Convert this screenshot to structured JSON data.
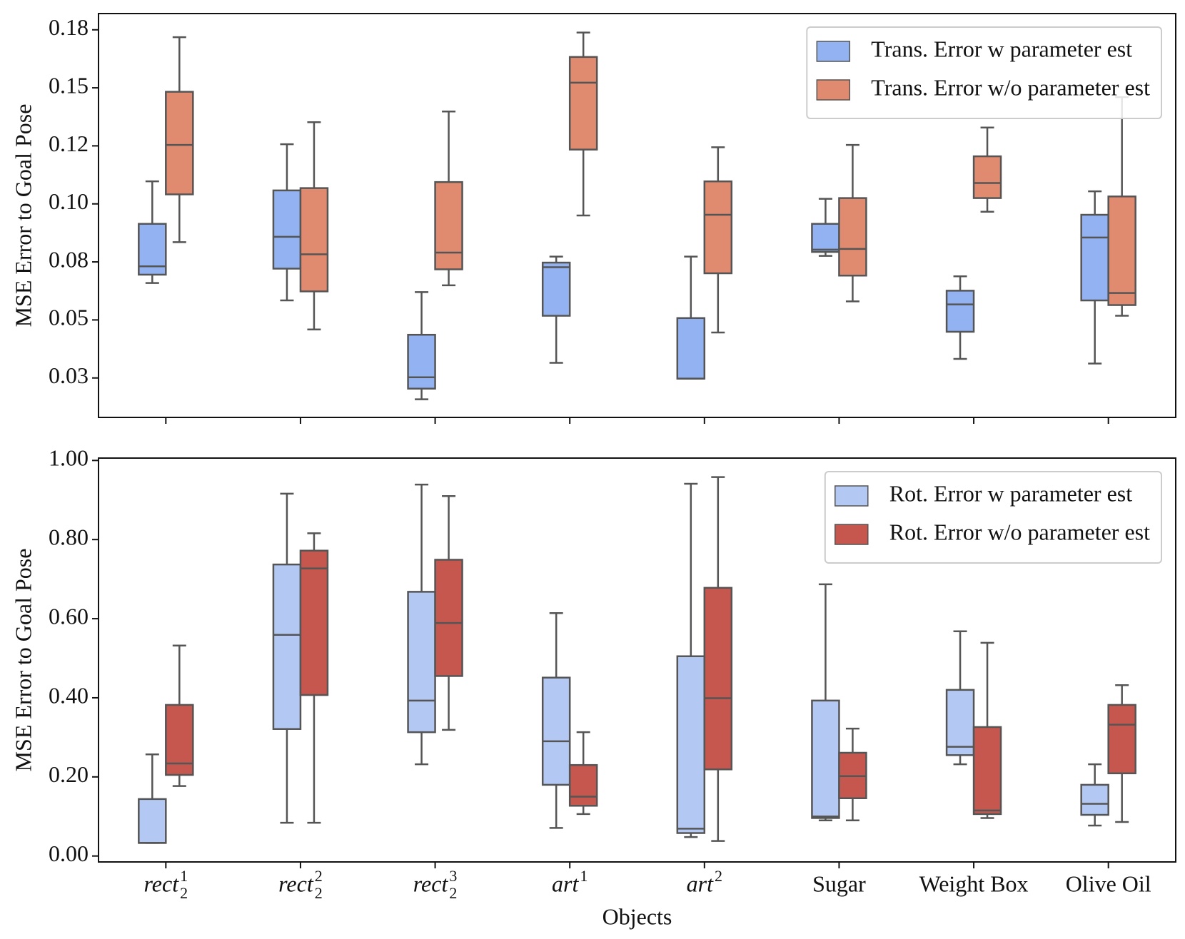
{
  "chart_data": [
    {
      "type": "box",
      "ylabel": "MSE Error to Goal Pose",
      "ylim": [
        0.008,
        0.182
      ],
      "yticks": [
        {
          "value": 0.025,
          "label": "0.03"
        },
        0.05,
        {
          "value": 0.075,
          "label": "0.08"
        },
        {
          "value": 0.1,
          "label": "0.10"
        },
        {
          "value": 0.125,
          "label": "0.12"
        },
        0.15,
        {
          "value": 0.175,
          "label": "0.18"
        }
      ],
      "legend": "upper right",
      "series": [
        {
          "name": "Trans. Error w parameter est",
          "color": "#92b2f1",
          "values": [
            [
              0.0659,
              0.0695,
              0.0731,
              0.0914,
              0.1097
            ],
            [
              0.0584,
              0.0721,
              0.0858,
              0.1058,
              0.1257
            ],
            [
              0.0158,
              0.0204,
              0.0253,
              0.0436,
              0.062
            ],
            [
              0.0315,
              0.0518,
              0.0727,
              0.0747,
              0.0773
            ],
            [
              0.0247,
              0.0247,
              0.0247,
              0.0508,
              0.0773
            ],
            [
              0.0776,
              0.0793,
              0.0803,
              0.0914,
              0.1022
            ],
            [
              0.0332,
              0.0449,
              0.0567,
              0.0626,
              0.0688
            ],
            [
              0.0312,
              0.0584,
              0.0855,
              0.0953,
              0.1054
            ]
          ]
        },
        {
          "name": "Trans. Error w/o parameter est",
          "color": "#e08a70",
          "values": [
            [
              0.0835,
              0.1041,
              0.1254,
              0.1483,
              0.1718
            ],
            [
              0.0459,
              0.0623,
              0.0783,
              0.1068,
              0.1352
            ],
            [
              0.0649,
              0.0718,
              0.079,
              0.1094,
              0.1398
            ],
            [
              0.095,
              0.1234,
              0.1522,
              0.1633,
              0.1738
            ],
            [
              0.0446,
              0.0701,
              0.0953,
              0.1097,
              0.1244
            ],
            [
              0.058,
              0.0691,
              0.0806,
              0.1025,
              0.1254
            ],
            [
              0.0966,
              0.1025,
              0.109,
              0.1205,
              0.1329
            ],
            [
              0.0518,
              0.0564,
              0.0616,
              0.1032,
              0.146
            ]
          ]
        }
      ]
    },
    {
      "type": "box",
      "xlabel": "Objects",
      "ylabel": "MSE Error to Goal Pose",
      "categories": [
        "rect",
        "rect",
        "rect",
        "art",
        "art",
        "Sugar",
        "Weight Box",
        "Olive Oil"
      ],
      "category_sub": [
        "2",
        "2",
        "2",
        null,
        null,
        null,
        null,
        null
      ],
      "category_sup": [
        "1",
        "2",
        "3",
        "1",
        "2",
        null,
        null,
        null
      ],
      "ylim": [
        -0.015,
        1.006
      ],
      "yticks": [
        {
          "value": 0,
          "label": "0.00"
        },
        {
          "value": 0.2,
          "label": "0.20"
        },
        {
          "value": 0.4,
          "label": "0.40"
        },
        {
          "value": 0.6,
          "label": "0.60"
        },
        {
          "value": 0.8,
          "label": "0.80"
        },
        {
          "value": 1,
          "label": "1.00"
        }
      ],
      "legend": "upper right",
      "series": [
        {
          "name": "Rot. Error w parameter est",
          "color": "#b3c8f3",
          "values": [
            [
              0.033,
              0.033,
              0.033,
              0.144,
              0.257
            ],
            [
              0.084,
              0.321,
              0.559,
              0.737,
              0.916
            ],
            [
              0.232,
              0.313,
              0.393,
              0.668,
              0.939
            ],
            [
              0.071,
              0.18,
              0.29,
              0.451,
              0.614
            ],
            [
              0.048,
              0.058,
              0.069,
              0.505,
              0.941
            ],
            [
              0.09,
              0.096,
              0.1,
              0.393,
              0.687
            ],
            [
              0.232,
              0.255,
              0.276,
              0.42,
              0.568
            ],
            [
              0.077,
              0.104,
              0.132,
              0.18,
              0.232
            ]
          ]
        },
        {
          "name": "Rot. Error w/o parameter est",
          "color": "#c6574f",
          "values": [
            [
              0.177,
              0.205,
              0.234,
              0.382,
              0.532
            ],
            [
              0.084,
              0.407,
              0.727,
              0.772,
              0.816
            ],
            [
              0.319,
              0.455,
              0.589,
              0.749,
              0.91
            ],
            [
              0.106,
              0.127,
              0.15,
              0.23,
              0.313
            ],
            [
              0.038,
              0.219,
              0.399,
              0.678,
              0.958
            ],
            [
              0.09,
              0.146,
              0.202,
              0.261,
              0.322
            ],
            [
              0.096,
              0.106,
              0.115,
              0.326,
              0.539
            ],
            [
              0.086,
              0.209,
              0.332,
              0.382,
              0.432
            ]
          ]
        }
      ]
    }
  ]
}
